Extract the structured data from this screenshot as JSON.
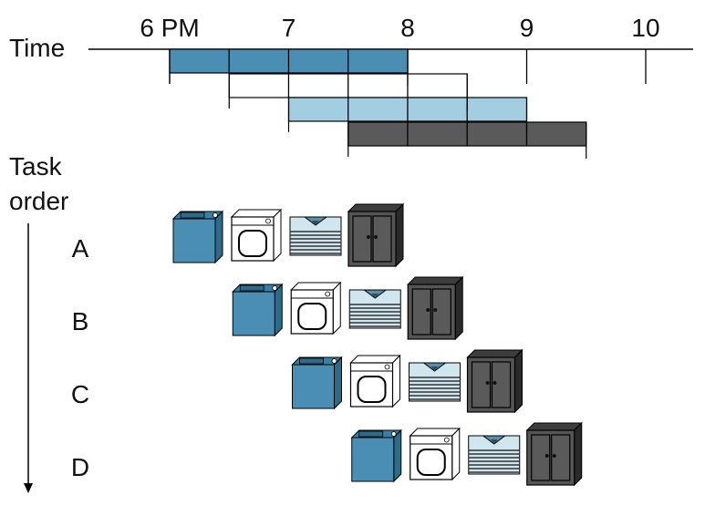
{
  "axis": {
    "label": "Time",
    "ticks": [
      "6 PM",
      "7",
      "8",
      "9",
      "10"
    ]
  },
  "stages": [
    {
      "name": "washer",
      "color": "#4a8fb3"
    },
    {
      "name": "dryer",
      "color": "#ffffff"
    },
    {
      "name": "folder",
      "color": "#a3cde0"
    },
    {
      "name": "storer",
      "color": "#5a5a5a"
    }
  ],
  "task_order_label": [
    "Task",
    "order"
  ],
  "tasks": [
    "A",
    "B",
    "C",
    "D"
  ],
  "icons": [
    "washer-icon",
    "dryer-icon",
    "folded-shirts-icon",
    "closet-icon"
  ]
}
